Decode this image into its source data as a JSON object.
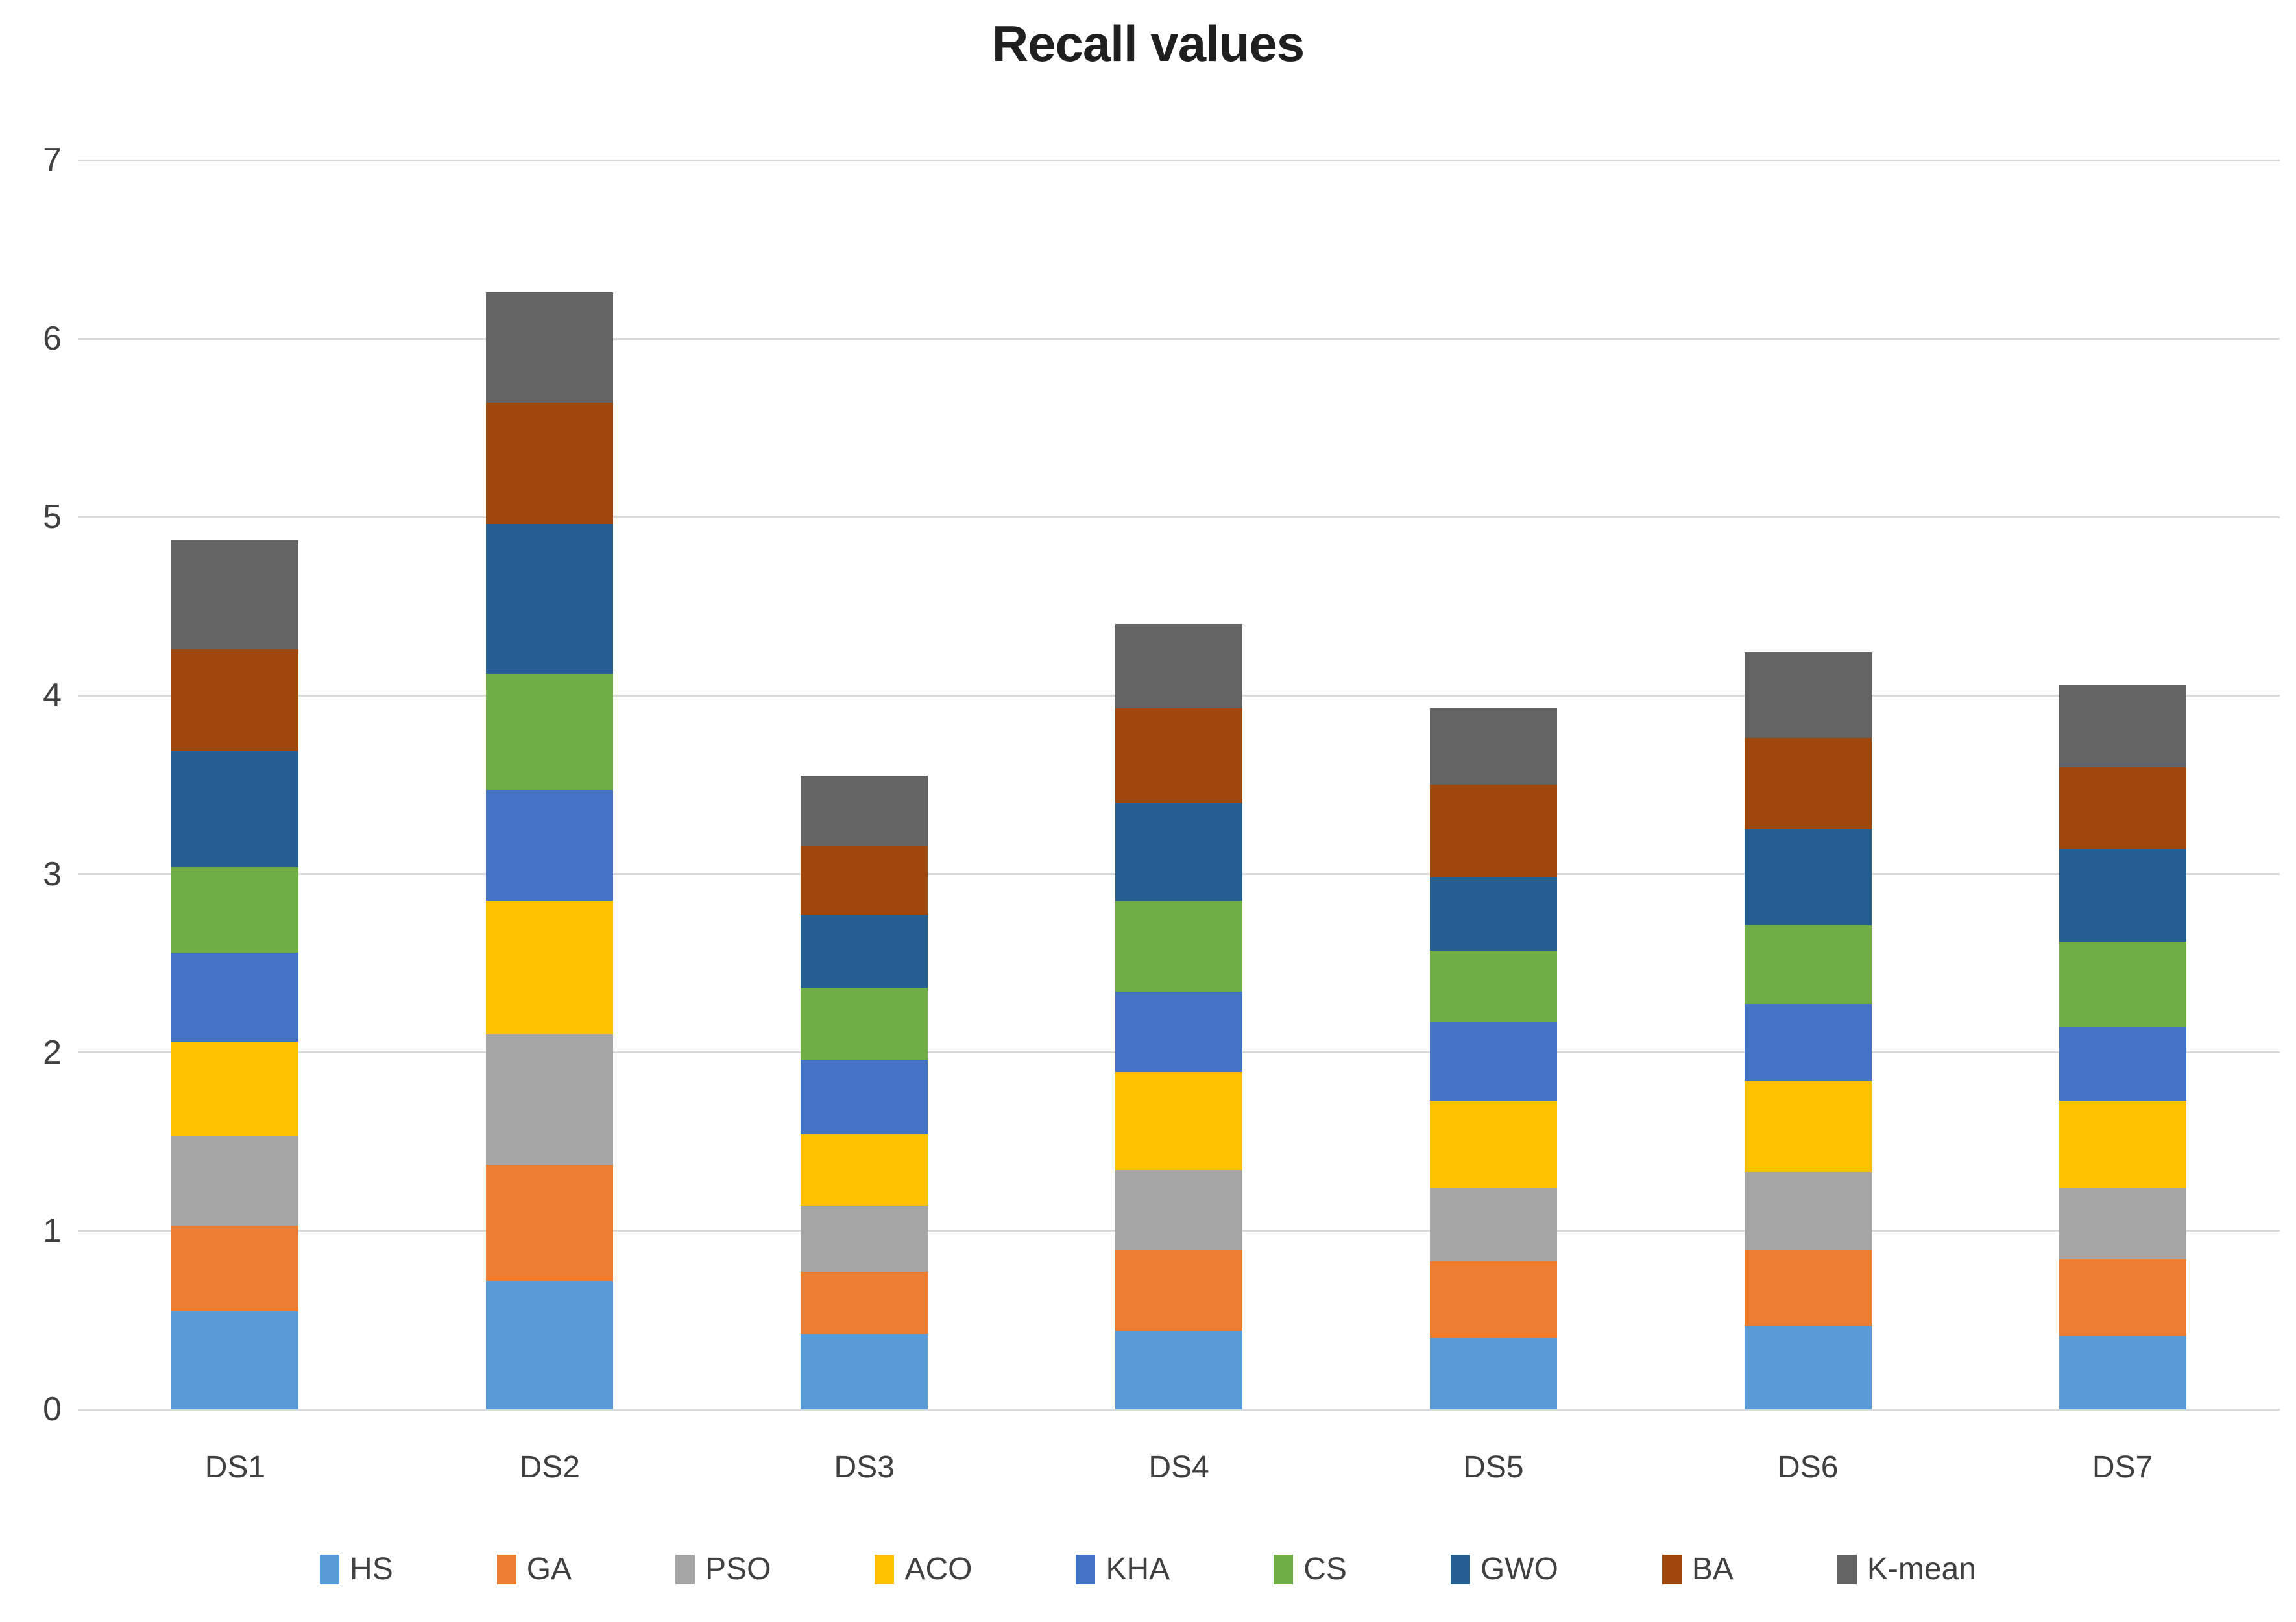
{
  "chart_data": {
    "type": "bar",
    "stacked": true,
    "title": "Recall values",
    "xlabel": "",
    "ylabel": "",
    "categories": [
      "DS1",
      "DS2",
      "DS3",
      "DS4",
      "DS5",
      "DS6",
      "DS7"
    ],
    "series": [
      {
        "name": "HS",
        "color": "#5B9BD5",
        "values": [
          0.55,
          0.72,
          0.42,
          0.44,
          0.4,
          0.47,
          0.41
        ]
      },
      {
        "name": "GA",
        "color": "#ED7D31",
        "values": [
          0.48,
          0.65,
          0.35,
          0.45,
          0.43,
          0.42,
          0.43
        ]
      },
      {
        "name": "PSO",
        "color": "#A5A5A5",
        "values": [
          0.5,
          0.73,
          0.37,
          0.45,
          0.41,
          0.44,
          0.4
        ]
      },
      {
        "name": "ACO",
        "color": "#FFC000",
        "values": [
          0.53,
          0.75,
          0.4,
          0.55,
          0.49,
          0.51,
          0.49
        ]
      },
      {
        "name": "KHA",
        "color": "#4472C4",
        "values": [
          0.5,
          0.62,
          0.42,
          0.45,
          0.44,
          0.43,
          0.41
        ]
      },
      {
        "name": "CS",
        "color": "#70AD47",
        "values": [
          0.48,
          0.65,
          0.4,
          0.51,
          0.4,
          0.44,
          0.48
        ]
      },
      {
        "name": "GWO",
        "color": "#255E91",
        "values": [
          0.65,
          0.84,
          0.41,
          0.55,
          0.41,
          0.54,
          0.52
        ]
      },
      {
        "name": "BA",
        "color": "#9E480E",
        "values": [
          0.57,
          0.68,
          0.39,
          0.53,
          0.52,
          0.51,
          0.46
        ]
      },
      {
        "name": "K-mean",
        "color": "#636363",
        "values": [
          0.61,
          0.62,
          0.39,
          0.47,
          0.43,
          0.48,
          0.46
        ]
      }
    ],
    "stack_totals": [
      4.87,
      6.26,
      3.55,
      4.4,
      3.93,
      4.24,
      4.06
    ],
    "ylim": [
      0,
      7
    ],
    "yticks": [
      0,
      1,
      2,
      3,
      4,
      5,
      6,
      7
    ],
    "grid": true,
    "gridline_color": "#d9d9d9",
    "legend_position": "bottom"
  }
}
